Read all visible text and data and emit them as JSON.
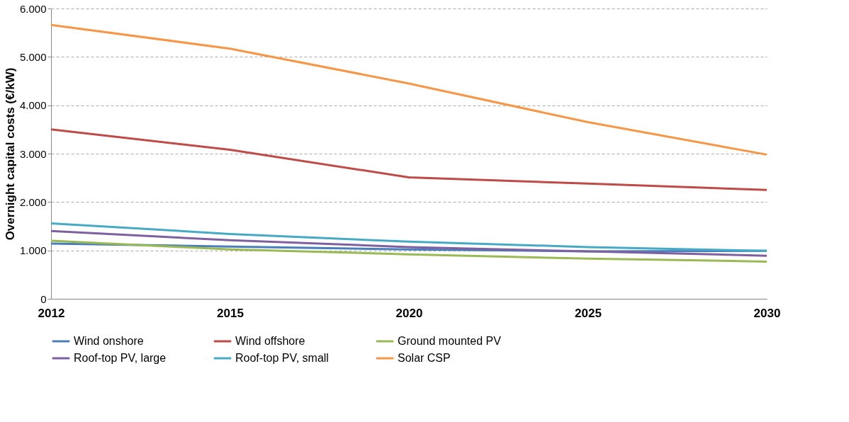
{
  "chart_data": {
    "type": "line",
    "ylabel": "Overnight capital costs (€/kW)",
    "categories": [
      "2012",
      "2015",
      "2020",
      "2025",
      "2030"
    ],
    "series": [
      {
        "name": "Wind onshore",
        "color": "#4a7ebb",
        "values": [
          1140,
          1080,
          1020,
          980,
          990
        ]
      },
      {
        "name": "Wind offshore",
        "color": "#be4b48",
        "values": [
          3500,
          3080,
          2510,
          2380,
          2250
        ]
      },
      {
        "name": "Ground mounted PV",
        "color": "#98b954",
        "values": [
          1200,
          1020,
          920,
          830,
          770
        ]
      },
      {
        "name": "Roof-top PV, large",
        "color": "#7d60a0",
        "values": [
          1400,
          1210,
          1070,
          980,
          890
        ]
      },
      {
        "name": "Roof-top PV, small",
        "color": "#46aac5",
        "values": [
          1560,
          1340,
          1180,
          1070,
          990
        ]
      },
      {
        "name": "Solar CSP",
        "color": "#f79646",
        "values": [
          5660,
          5170,
          4450,
          3650,
          2980
        ]
      }
    ],
    "ylim": [
      0,
      6000
    ],
    "yticks": [
      0,
      {
        "value": 1000,
        "label": "1.000"
      },
      {
        "value": 2000,
        "label": "2.000"
      },
      {
        "value": 3000,
        "label": "3.000"
      },
      {
        "value": 4000,
        "label": "4.000"
      },
      {
        "value": 5000,
        "label": "5.000"
      },
      {
        "value": 6000,
        "label": "6.000"
      }
    ],
    "grid": "y",
    "legend": "bottom",
    "marker": "none",
    "line_style": "solid"
  }
}
